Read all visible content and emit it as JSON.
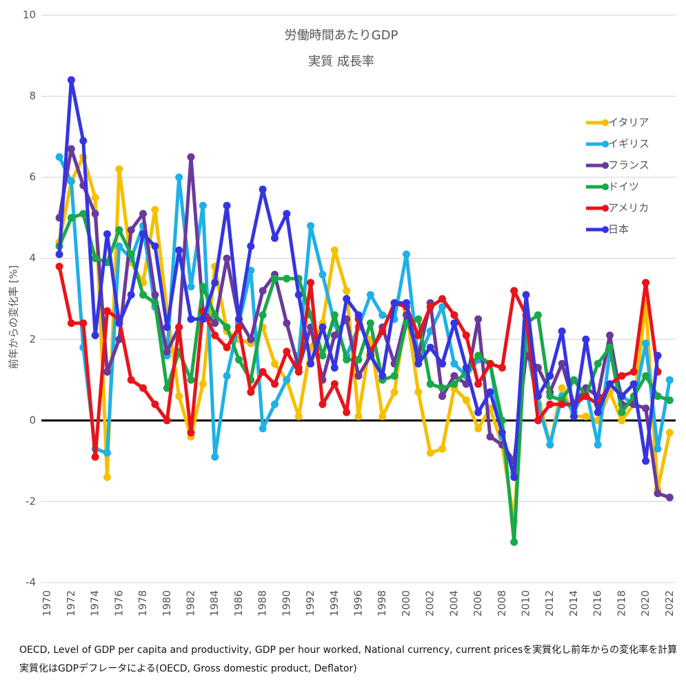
{
  "chart_data": {
    "type": "line",
    "title": "労働時間あたりGDP",
    "subtitle": "実質 成長率",
    "y_label": "前年からの変化率 [%]",
    "notes": [
      "OECD, Level of GDP per capita and productivity, GDP per hour worked, National currency, current pricesを実質化し前年からの変化率を計算",
      "実質化はGDPデフレータによる(OECD, Gross domestic product, Deflator)"
    ],
    "x": [
      1971,
      1972,
      1973,
      1974,
      1975,
      1976,
      1977,
      1978,
      1979,
      1980,
      1981,
      1982,
      1983,
      1984,
      1985,
      1986,
      1987,
      1988,
      1989,
      1990,
      1991,
      1992,
      1993,
      1994,
      1995,
      1996,
      1997,
      1998,
      1999,
      2000,
      2001,
      2002,
      2003,
      2004,
      2005,
      2006,
      2007,
      2008,
      2009,
      2010,
      2011,
      2012,
      2013,
      2014,
      2015,
      2016,
      2017,
      2018,
      2019,
      2020,
      2021,
      2022
    ],
    "xlim": [
      1969.5,
      2022.5
    ],
    "xticks": [
      1970,
      1972,
      1974,
      1976,
      1978,
      1980,
      1982,
      1984,
      1986,
      1988,
      1990,
      1992,
      1994,
      1996,
      1998,
      2000,
      2002,
      2004,
      2006,
      2008,
      2010,
      2012,
      2014,
      2016,
      2018,
      2020,
      2022
    ],
    "ylim": [
      -4,
      10
    ],
    "yticks": [
      -4,
      -2,
      0,
      2,
      4,
      6,
      8,
      10
    ],
    "grid": true,
    "legend": "upper right",
    "series": [
      {
        "name": "イタリア",
        "color": "#f5c000",
        "values": [
          4.4,
          5.9,
          6.5,
          5.5,
          -1.4,
          6.2,
          3.9,
          3.4,
          5.2,
          2.7,
          0.6,
          -0.4,
          0.9,
          3.8,
          2.2,
          2.0,
          1.9,
          2.3,
          1.4,
          1.0,
          0.1,
          1.8,
          2.4,
          4.2,
          3.2,
          0.1,
          2.0,
          0.1,
          0.7,
          2.7,
          0.7,
          -0.8,
          -0.7,
          0.8,
          0.5,
          -0.2,
          0.3,
          -0.6,
          -2.5,
          2.3,
          0.6,
          -0.6,
          0.8,
          0.1,
          0.1,
          0.0,
          0.7,
          0.0,
          0.4,
          2.9,
          -1.7,
          -0.3
        ]
      },
      {
        "name": "イギリス",
        "color": "#1fb0e6",
        "values": [
          6.5,
          5.9,
          1.8,
          -0.7,
          -0.8,
          4.3,
          4.0,
          4.8,
          2.8,
          1.6,
          6.0,
          3.3,
          5.3,
          -0.9,
          1.1,
          2.4,
          3.7,
          -0.2,
          0.4,
          1.0,
          1.6,
          4.8,
          3.6,
          2.4,
          1.6,
          2.3,
          3.1,
          2.6,
          2.5,
          4.1,
          1.5,
          2.2,
          2.8,
          1.4,
          1.1,
          1.5,
          1.4,
          -0.4,
          -1.3,
          1.9,
          0.4,
          -0.6,
          0.6,
          0.2,
          0.8,
          -0.6,
          1.7,
          0.6,
          0.4,
          1.9,
          -0.7,
          1.0
        ]
      },
      {
        "name": "フランス",
        "color": "#6a3a9a",
        "values": [
          5.0,
          6.7,
          5.8,
          5.1,
          1.2,
          2.0,
          4.7,
          5.1,
          3.1,
          1.7,
          2.3,
          6.5,
          2.7,
          2.4,
          4.0,
          2.5,
          2.0,
          3.2,
          3.6,
          2.4,
          1.3,
          2.3,
          1.0,
          2.1,
          2.5,
          1.1,
          1.6,
          2.3,
          1.4,
          2.6,
          1.6,
          2.9,
          0.6,
          1.1,
          0.9,
          2.5,
          -0.4,
          -0.6,
          -1.0,
          1.6,
          1.3,
          0.7,
          1.4,
          0.4,
          0.8,
          0.6,
          2.1,
          0.4,
          0.4,
          0.3,
          -1.8,
          -1.9
        ]
      },
      {
        "name": "ドイツ",
        "color": "#1aa84a",
        "values": [
          4.3,
          5.0,
          5.1,
          4.0,
          3.9,
          4.7,
          4.1,
          3.1,
          2.9,
          0.8,
          1.7,
          1.0,
          3.3,
          2.6,
          2.3,
          1.5,
          1.0,
          2.6,
          3.5,
          3.5,
          3.5,
          2.6,
          1.6,
          2.6,
          1.5,
          1.5,
          2.4,
          1.0,
          1.1,
          2.4,
          2.5,
          0.9,
          0.8,
          0.9,
          1.2,
          1.6,
          1.4,
          0.0,
          -3.0,
          2.4,
          2.6,
          0.6,
          0.5,
          1.0,
          0.6,
          1.4,
          1.8,
          0.2,
          0.6,
          1.1,
          0.6,
          0.5
        ]
      },
      {
        "name": "アメリカ",
        "color": "#e8141a",
        "values": [
          3.8,
          2.4,
          2.4,
          -0.9,
          2.7,
          2.5,
          1.0,
          0.8,
          0.4,
          0.0,
          2.3,
          -0.3,
          2.7,
          2.1,
          1.8,
          2.3,
          0.7,
          1.2,
          0.9,
          1.7,
          1.2,
          3.4,
          0.4,
          0.9,
          0.2,
          2.5,
          1.7,
          2.2,
          2.9,
          2.8,
          2.1,
          2.8,
          3.0,
          2.6,
          2.1,
          0.9,
          1.4,
          1.3,
          3.2,
          2.6,
          0.0,
          0.4,
          0.4,
          0.4,
          0.6,
          0.4,
          0.9,
          1.1,
          1.2,
          3.4,
          1.2,
          null
        ]
      },
      {
        "name": "日本",
        "color": "#3535e0",
        "values": [
          4.1,
          8.4,
          6.9,
          2.1,
          4.6,
          2.4,
          3.1,
          4.6,
          4.3,
          2.3,
          4.2,
          2.5,
          2.5,
          3.4,
          5.3,
          2.5,
          4.3,
          5.7,
          4.5,
          5.1,
          3.1,
          1.4,
          2.3,
          1.3,
          3.0,
          2.6,
          1.6,
          1.1,
          2.9,
          2.9,
          1.4,
          1.8,
          1.4,
          2.4,
          1.3,
          0.2,
          0.7,
          -0.3,
          -1.4,
          3.1,
          0.6,
          1.1,
          2.2,
          0.1,
          2.0,
          0.2,
          0.9,
          0.6,
          0.9,
          -1.0,
          1.6,
          null
        ]
      }
    ]
  }
}
